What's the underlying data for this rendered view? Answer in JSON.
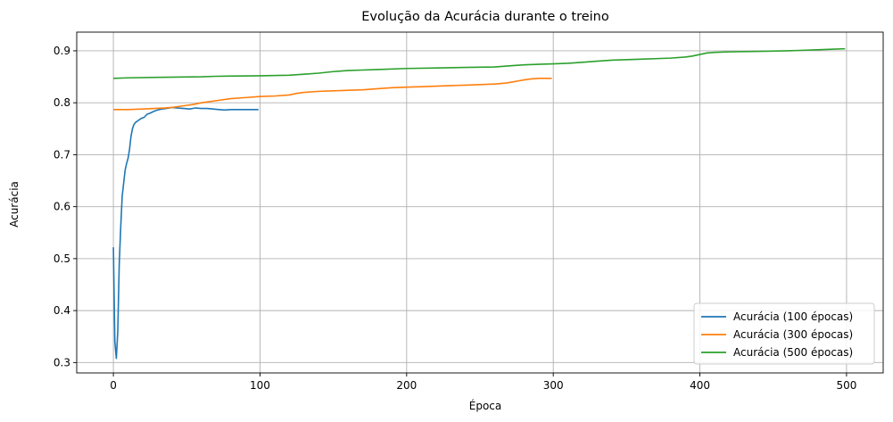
{
  "chart_data": {
    "type": "line",
    "title": "Evolução da Acurácia durante o treino",
    "xlabel": "Época",
    "ylabel": "Acurácia",
    "xlim": [
      -25,
      525
    ],
    "ylim": [
      0.28,
      0.936
    ],
    "xticks": [
      0,
      100,
      200,
      300,
      400,
      500
    ],
    "yticks": [
      0.3,
      0.4,
      0.5,
      0.6,
      0.7,
      0.8,
      0.9
    ],
    "xtick_labels": [
      "0",
      "100",
      "200",
      "300",
      "400",
      "500"
    ],
    "ytick_labels": [
      "0.3",
      "0.4",
      "0.5",
      "0.6",
      "0.7",
      "0.8",
      "0.9"
    ],
    "grid": true,
    "legend_position": "lower-right",
    "series": [
      {
        "name": "Acurácia (100 épocas)",
        "color": "#1f77b4",
        "x": [
          0,
          1,
          2,
          3,
          4,
          5,
          6,
          7,
          8,
          9,
          10,
          11,
          12,
          13,
          14,
          15,
          17,
          19,
          21,
          23,
          25,
          28,
          30,
          33,
          36,
          40,
          44,
          48,
          52,
          56,
          60,
          64,
          68,
          72,
          76,
          80,
          85,
          90,
          95,
          99
        ],
        "y": [
          0.522,
          0.34,
          0.308,
          0.36,
          0.49,
          0.56,
          0.62,
          0.645,
          0.67,
          0.683,
          0.693,
          0.71,
          0.735,
          0.75,
          0.758,
          0.762,
          0.766,
          0.77,
          0.772,
          0.778,
          0.78,
          0.784,
          0.786,
          0.788,
          0.789,
          0.791,
          0.79,
          0.789,
          0.788,
          0.79,
          0.789,
          0.789,
          0.788,
          0.787,
          0.786,
          0.787,
          0.787,
          0.787,
          0.787,
          0.787
        ]
      },
      {
        "name": "Acurácia (300 épocas)",
        "color": "#ff7f0e",
        "x": [
          0,
          10,
          20,
          28,
          35,
          40,
          45,
          50,
          55,
          60,
          65,
          70,
          80,
          90,
          100,
          110,
          120,
          125,
          130,
          140,
          150,
          160,
          170,
          180,
          190,
          200,
          210,
          220,
          230,
          240,
          250,
          260,
          268,
          272,
          276,
          280,
          285,
          290,
          299
        ],
        "y": [
          0.787,
          0.787,
          0.788,
          0.789,
          0.79,
          0.791,
          0.793,
          0.795,
          0.797,
          0.8,
          0.802,
          0.804,
          0.808,
          0.81,
          0.812,
          0.813,
          0.815,
          0.818,
          0.82,
          0.822,
          0.823,
          0.824,
          0.825,
          0.827,
          0.829,
          0.83,
          0.831,
          0.832,
          0.833,
          0.834,
          0.835,
          0.836,
          0.838,
          0.84,
          0.842,
          0.844,
          0.846,
          0.847,
          0.847
        ]
      },
      {
        "name": "Acurácia (500 épocas)",
        "color": "#2ca02c",
        "x": [
          0,
          10,
          30,
          60,
          70,
          100,
          120,
          130,
          140,
          150,
          160,
          170,
          180,
          200,
          220,
          240,
          260,
          270,
          280,
          290,
          300,
          310,
          320,
          330,
          340,
          360,
          380,
          390,
          395,
          400,
          405,
          410,
          420,
          440,
          460,
          470,
          480,
          490,
          499
        ],
        "y": [
          0.847,
          0.848,
          0.849,
          0.85,
          0.851,
          0.852,
          0.853,
          0.855,
          0.857,
          0.86,
          0.862,
          0.863,
          0.864,
          0.866,
          0.867,
          0.868,
          0.869,
          0.871,
          0.873,
          0.874,
          0.875,
          0.876,
          0.878,
          0.88,
          0.882,
          0.884,
          0.886,
          0.888,
          0.89,
          0.893,
          0.896,
          0.897,
          0.898,
          0.899,
          0.9,
          0.901,
          0.902,
          0.903,
          0.904
        ]
      }
    ]
  }
}
